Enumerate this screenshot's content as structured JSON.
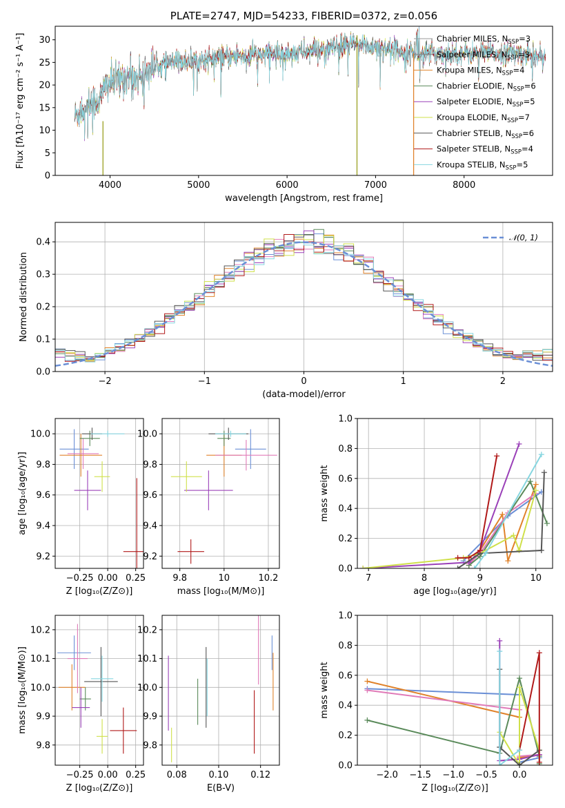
{
  "chart_data": [
    {
      "id": "spectrum",
      "type": "line",
      "title": "PLATE=2747, MJD=54233, FIBERID=0372, z=0.056",
      "xlabel": "wavelength [Angstrom, rest frame]",
      "ylabel": "Flux [fλ10⁻¹⁷ erg cm⁻² s⁻¹ A⁻¹]",
      "xlim": [
        3380,
        9000
      ],
      "ylim": [
        0,
        33
      ],
      "xticks": [
        4000,
        5000,
        6000,
        7000,
        8000
      ],
      "yticks": [
        0,
        5,
        10,
        15,
        20,
        25,
        30
      ],
      "grid": false,
      "legend": "right",
      "continuum": {
        "x": [
          3600,
          3700,
          3800,
          3900,
          3950,
          4000,
          4100,
          4200,
          4300,
          4400,
          4500,
          4700,
          5000,
          5500,
          6000,
          6500,
          6700,
          7000,
          7500,
          8000,
          8500,
          8900
        ],
        "y": [
          13,
          15,
          16,
          17,
          20,
          20.5,
          21,
          22,
          21.5,
          23,
          24,
          25,
          25.5,
          26.5,
          27,
          28,
          29,
          28.5,
          27,
          27,
          27,
          26.5
        ]
      },
      "series": [
        {
          "name": "Chabrier MILES, N",
          "sub": "SSP",
          "suffix": "=3",
          "color": "#9a9a9a"
        },
        {
          "name": "Salpeter MILES, N",
          "sub": "SSP",
          "suffix": "=3",
          "color": "#7f7f7f"
        },
        {
          "name": "Kroupa MILES, N",
          "sub": "SSP",
          "suffix": "=4",
          "color": "#e0822a"
        },
        {
          "name": "Chabrier ELODIE, N",
          "sub": "SSP",
          "suffix": "=6",
          "color": "#5a8a5a"
        },
        {
          "name": "Salpeter ELODIE, N",
          "sub": "SSP",
          "suffix": "=5",
          "color": "#9a40b8"
        },
        {
          "name": "Kroupa ELODIE, N",
          "sub": "SSP",
          "suffix": "=7",
          "color": "#cfe04a"
        },
        {
          "name": "Chabrier STELIB, N",
          "sub": "SSP",
          "suffix": "=6",
          "color": "#555555"
        },
        {
          "name": "Salpeter STELIB, N",
          "sub": "SSP",
          "suffix": "=4",
          "color": "#b01818"
        },
        {
          "name": "Kroupa STELIB, N",
          "sub": "SSP",
          "suffix": "=5",
          "color": "#86d6e0"
        }
      ],
      "spikes": [
        {
          "x": 3920,
          "y0": 0,
          "y1": 12,
          "color": "#9aa020"
        },
        {
          "x": 6790,
          "y0": 0,
          "y1": 31,
          "color": "#9aa020"
        },
        {
          "x": 7430,
          "y0": 0,
          "y1": 27,
          "color": "#e0822a"
        }
      ]
    },
    {
      "id": "residuals",
      "type": "step",
      "xlabel": "(data-model)/error",
      "ylabel": "Normed distribution",
      "xlim": [
        -2.5,
        2.5
      ],
      "ylim": [
        0,
        0.46
      ],
      "xticks": [
        -2,
        -1,
        0,
        1,
        2
      ],
      "yticks": [
        0.0,
        0.1,
        0.2,
        0.3,
        0.4
      ],
      "grid": true,
      "legend": "top-right",
      "reference": {
        "name": "𝒩(0, 1)",
        "color": "#6a8fd6"
      },
      "bin_width": 0.1
    },
    {
      "id": "age-vs-z",
      "type": "errorbar",
      "xlabel": "Z [log₁₀(Z/Z⊙)]",
      "ylabel": "age  [log₁₀(age/yr)]",
      "xlim": [
        -0.47,
        0.32
      ],
      "ylim": [
        9.12,
        10.1
      ],
      "xticks": [
        -0.25,
        0.0,
        0.25
      ],
      "xtick_labels": [
        "−0.25",
        "0.00",
        "0.25"
      ],
      "yticks": [
        9.2,
        9.4,
        9.6,
        9.8,
        10.0
      ],
      "grid": true,
      "points": [
        {
          "x": -0.3,
          "y": 9.9,
          "xerr": 0.13,
          "yerr": 0.13,
          "color": "#6a8fd6"
        },
        {
          "x": -0.24,
          "y": 9.86,
          "xerr": 0.19,
          "yerr": 0.14,
          "color": "#e0822a"
        },
        {
          "x": -0.22,
          "y": 9.87,
          "xerr": 0.14,
          "yerr": 0.1,
          "color": "#e07ab8"
        },
        {
          "x": -0.16,
          "y": 9.97,
          "xerr": 0.09,
          "yerr": 0.05,
          "color": "#5a8a5a"
        },
        {
          "x": -0.18,
          "y": 9.63,
          "xerr": 0.12,
          "yerr": 0.13,
          "color": "#9a40b8"
        },
        {
          "x": -0.05,
          "y": 9.72,
          "xerr": 0.07,
          "yerr": 0.1,
          "color": "#cfe04a"
        },
        {
          "x": -0.14,
          "y": 10.0,
          "xerr": 0.09,
          "yerr": 0.04,
          "color": "#555555"
        },
        {
          "x": 0.0,
          "y": 10.0,
          "xerr": 0.15,
          "yerr": 0.02,
          "color": "#86d6e0"
        },
        {
          "x": 0.26,
          "y": 9.23,
          "xerr": 0.12,
          "yerr": 0.48,
          "color": "#b01818"
        }
      ]
    },
    {
      "id": "age-vs-mass",
      "type": "errorbar",
      "xlabel": "mass [log₁₀(M/M⊙)]",
      "xlim": [
        9.72,
        10.25
      ],
      "ylim": [
        9.12,
        10.1
      ],
      "xticks": [
        9.8,
        10.0,
        10.2
      ],
      "yticks": [
        9.2,
        9.4,
        9.6,
        9.8,
        10.0
      ],
      "grid": true,
      "points": [
        {
          "x": 10.12,
          "y": 9.9,
          "xerr": 0.07,
          "yerr": 0.13,
          "color": "#6a8fd6"
        },
        {
          "x": 10.0,
          "y": 9.86,
          "xerr": 0.08,
          "yerr": 0.14,
          "color": "#e0822a"
        },
        {
          "x": 10.1,
          "y": 9.86,
          "xerr": 0.14,
          "yerr": 0.1,
          "color": "#e07ab8"
        },
        {
          "x": 10.0,
          "y": 9.97,
          "xerr": 0.03,
          "yerr": 0.05,
          "color": "#5a8a5a"
        },
        {
          "x": 9.93,
          "y": 9.63,
          "xerr": 0.11,
          "yerr": 0.13,
          "color": "#9a40b8"
        },
        {
          "x": 9.83,
          "y": 9.72,
          "xerr": 0.07,
          "yerr": 0.1,
          "color": "#cfe04a"
        },
        {
          "x": 10.02,
          "y": 10.0,
          "xerr": 0.09,
          "yerr": 0.04,
          "color": "#555555"
        },
        {
          "x": 10.03,
          "y": 10.0,
          "xerr": 0.07,
          "yerr": 0.02,
          "color": "#86d6e0"
        },
        {
          "x": 9.85,
          "y": 9.23,
          "xerr": 0.06,
          "yerr": 0.08,
          "color": "#b01818"
        }
      ]
    },
    {
      "id": "weight-vs-age",
      "type": "line",
      "xlabel": "age  [log₁₀(age/yr)]",
      "ylabel": "mass weight",
      "xlim": [
        6.8,
        10.3
      ],
      "ylim": [
        0,
        1.0
      ],
      "xticks": [
        7,
        8,
        9,
        10
      ],
      "yticks": [
        0.0,
        0.2,
        0.4,
        0.6,
        0.8,
        1.0
      ],
      "grid": true,
      "series": [
        {
          "color": "#6a8fd6",
          "x": [
            8.7,
            9.5,
            10.1
          ],
          "y": [
            0.05,
            0.35,
            0.51
          ]
        },
        {
          "color": "#e0822a",
          "x": [
            8.8,
            9.0,
            9.4,
            9.5,
            10.0
          ],
          "y": [
            0.02,
            0.12,
            0.36,
            0.05,
            0.56
          ]
        },
        {
          "color": "#e07ab8",
          "x": [
            8.8,
            9.0,
            9.5,
            10.0
          ],
          "y": [
            0.03,
            0.1,
            0.37,
            0.5
          ]
        },
        {
          "color": "#5a8a5a",
          "x": [
            8.8,
            9.0,
            9.9,
            10.2
          ],
          "y": [
            0.02,
            0.08,
            0.58,
            0.3
          ]
        },
        {
          "color": "#9a40b8",
          "x": [
            6.9,
            8.8,
            9.0,
            9.7
          ],
          "y": [
            0.0,
            0.04,
            0.12,
            0.83
          ]
        },
        {
          "color": "#cfe04a",
          "x": [
            6.9,
            8.7,
            9.0,
            9.6,
            9.7,
            10.0
          ],
          "y": [
            0.0,
            0.07,
            0.1,
            0.22,
            0.12,
            0.52
          ]
        },
        {
          "color": "#555555",
          "x": [
            8.6,
            9.0,
            10.1,
            10.15
          ],
          "y": [
            0.0,
            0.1,
            0.12,
            0.64
          ]
        },
        {
          "color": "#b01818",
          "x": [
            8.6,
            8.8,
            9.0,
            9.3
          ],
          "y": [
            0.07,
            0.07,
            0.12,
            0.75
          ]
        },
        {
          "color": "#86d6e0",
          "x": [
            8.9,
            9.1,
            10.1
          ],
          "y": [
            0.0,
            0.1,
            0.76
          ]
        }
      ]
    },
    {
      "id": "mass-vs-z",
      "type": "errorbar",
      "xlabel": "Z [log₁₀(Z/Z⊙)]",
      "ylabel": "mass [log₁₀(M/M⊙)]",
      "xlim": [
        -0.47,
        0.32
      ],
      "ylim": [
        9.73,
        10.25
      ],
      "xticks": [
        -0.25,
        0.0,
        0.25
      ],
      "xtick_labels": [
        "−0.25",
        "0.00",
        "0.25"
      ],
      "yticks": [
        9.8,
        9.9,
        10.0,
        10.1,
        10.2
      ],
      "grid": true,
      "points": [
        {
          "x": -0.3,
          "y": 10.12,
          "xerr": 0.15,
          "yerr": 0.06,
          "color": "#6a8fd6"
        },
        {
          "x": -0.32,
          "y": 10.0,
          "xerr": 0.12,
          "yerr": 0.08,
          "color": "#e0822a"
        },
        {
          "x": -0.27,
          "y": 10.1,
          "xerr": 0.09,
          "yerr": 0.12,
          "color": "#e07ab8"
        },
        {
          "x": -0.2,
          "y": 9.96,
          "xerr": 0.05,
          "yerr": 0.04,
          "color": "#5a8a5a"
        },
        {
          "x": -0.24,
          "y": 9.93,
          "xerr": 0.08,
          "yerr": 0.07,
          "color": "#9a40b8"
        },
        {
          "x": -0.05,
          "y": 9.83,
          "xerr": 0.05,
          "yerr": 0.06,
          "color": "#cfe04a"
        },
        {
          "x": -0.06,
          "y": 10.02,
          "xerr": 0.15,
          "yerr": 0.12,
          "color": "#555555"
        },
        {
          "x": -0.05,
          "y": 10.03,
          "xerr": 0.1,
          "yerr": 0.08,
          "color": "#86d6e0"
        },
        {
          "x": 0.14,
          "y": 9.85,
          "xerr": 0.12,
          "yerr": 0.08,
          "color": "#b01818"
        }
      ]
    },
    {
      "id": "mass-vs-ebv",
      "type": "errorbar",
      "xlabel": "E(B-V)",
      "xlim": [
        0.073,
        0.129
      ],
      "ylim": [
        9.73,
        10.25
      ],
      "xticks": [
        0.08,
        0.1,
        0.12
      ],
      "xtick_labels": [
        "0.08",
        "0.10",
        "0.12"
      ],
      "yticks": [
        9.8,
        9.9,
        10.0,
        10.1,
        10.2
      ],
      "grid": true,
      "points": [
        {
          "x": 0.1255,
          "y": 10.12,
          "xerr": 0,
          "yerr": 0.06,
          "color": "#6a8fd6"
        },
        {
          "x": 0.126,
          "y": 10.02,
          "xerr": 0,
          "yerr": 0.1,
          "color": "#e0822a"
        },
        {
          "x": 0.119,
          "y": 10.13,
          "xerr": 0,
          "yerr": 0.12,
          "color": "#e07ab8"
        },
        {
          "x": 0.09,
          "y": 9.95,
          "xerr": 0,
          "yerr": 0.08,
          "color": "#5a8a5a"
        },
        {
          "x": 0.076,
          "y": 9.98,
          "xerr": 0,
          "yerr": 0.13,
          "color": "#9a40b8"
        },
        {
          "x": 0.0775,
          "y": 9.8,
          "xerr": 0,
          "yerr": 0.06,
          "color": "#cfe04a"
        },
        {
          "x": 0.094,
          "y": 10.0,
          "xerr": 0,
          "yerr": 0.14,
          "color": "#555555"
        },
        {
          "x": 0.0945,
          "y": 10.0,
          "xerr": 0,
          "yerr": 0.1,
          "color": "#86d6e0"
        },
        {
          "x": 0.117,
          "y": 9.88,
          "xerr": 0,
          "yerr": 0.11,
          "color": "#b01818"
        }
      ]
    },
    {
      "id": "weight-vs-z",
      "type": "line",
      "xlabel": "Z [log₁₀(Z/Z⊙)]",
      "ylabel": "mass weight",
      "xlim": [
        -2.45,
        0.5
      ],
      "ylim": [
        0,
        1.0
      ],
      "xticks": [
        -2.0,
        -1.5,
        -1.0,
        -0.5,
        0.0
      ],
      "xtick_labels": [
        "−2.0",
        "−1.5",
        "−1.0",
        "−0.5",
        "0.0"
      ],
      "yticks": [
        0.0,
        0.2,
        0.4,
        0.6,
        0.8,
        1.0
      ],
      "grid": true,
      "series": [
        {
          "color": "#6a8fd6",
          "x": [
            -2.3,
            0.0,
            0.0,
            0.3
          ],
          "y": [
            0.51,
            0.47,
            0.02,
            0.05
          ]
        },
        {
          "color": "#e0822a",
          "x": [
            -2.3,
            0.0,
            0.0,
            0.3
          ],
          "y": [
            0.56,
            0.32,
            0.05,
            0.07
          ]
        },
        {
          "color": "#e07ab8",
          "x": [
            -2.3,
            0.0,
            0.0,
            0.3
          ],
          "y": [
            0.5,
            0.37,
            0.06,
            0.07
          ]
        },
        {
          "color": "#5a8a5a",
          "x": [
            -2.3,
            -0.3,
            0.0,
            0.3,
            0.3
          ],
          "y": [
            0.3,
            0.08,
            0.58,
            0.06,
            0.01
          ]
        },
        {
          "color": "#9a40b8",
          "x": [
            -0.3,
            -0.3,
            0.0,
            0.3
          ],
          "y": [
            0.83,
            0.03,
            0.04,
            0.07
          ]
        },
        {
          "color": "#cfe04a",
          "x": [
            -0.3,
            0.0,
            0.0,
            0.3
          ],
          "y": [
            0.22,
            0.0,
            0.52,
            0.1
          ]
        },
        {
          "color": "#555555",
          "x": [
            -0.3,
            -0.3,
            0.0,
            0.3
          ],
          "y": [
            0.64,
            0.12,
            0.0,
            0.1
          ]
        },
        {
          "color": "#b01818",
          "x": [
            0.0,
            0.3,
            0.3
          ],
          "y": [
            0.1,
            0.75,
            0.02
          ]
        },
        {
          "color": "#86d6e0",
          "x": [
            -0.3,
            -0.3,
            0.0
          ],
          "y": [
            0.76,
            0.0,
            0.1
          ]
        }
      ]
    }
  ]
}
